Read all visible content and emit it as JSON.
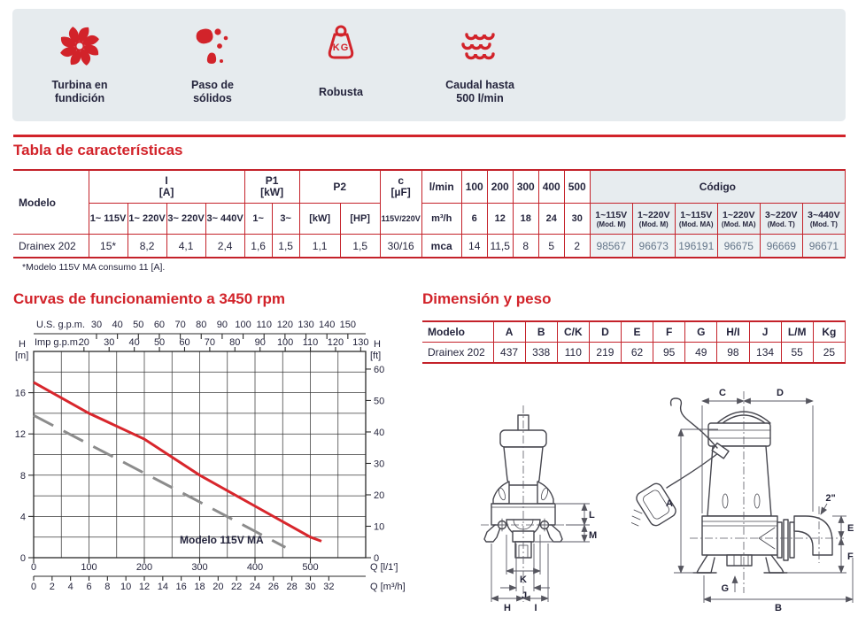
{
  "colors": {
    "accent_red": "#d2232a",
    "text_navy": "#25253d",
    "banner_bg": "#e6ebee",
    "code_header_bg": "#e7ecef",
    "code_value_bg": "#eef2f4",
    "code_text": "#64768a",
    "curve_red": "#d8262c",
    "curve_gray": "#8c8c8c"
  },
  "banner": {
    "features": [
      {
        "icon": "impeller-icon",
        "lines": [
          "Turbina en",
          "fundición"
        ]
      },
      {
        "icon": "solids-passage-icon",
        "lines": [
          "Paso de",
          "sólidos"
        ]
      },
      {
        "icon": "kg-weight-icon",
        "lines": [
          "Robusta"
        ],
        "kg_label": "KG"
      },
      {
        "icon": "waves-icon",
        "lines": [
          "Caudal hasta",
          "500 l/min"
        ]
      }
    ]
  },
  "char_table": {
    "title": "Tabla de características",
    "footnote": "*Modelo 115V MA consumo 11 [A].",
    "model_header": "Modelo",
    "group_I": {
      "label": "I",
      "unit": "[A]",
      "cols": [
        "1~ 115V",
        "1~ 220V",
        "3~ 220V",
        "3~ 440V"
      ]
    },
    "group_P1": {
      "label": "P1",
      "unit": "[kW]",
      "cols": [
        "1~",
        "3~"
      ]
    },
    "group_P2": {
      "label": "P2",
      "cols": [
        "[kW]",
        "[HP]"
      ]
    },
    "group_c": {
      "label": "c",
      "unit": "[µF]",
      "sub": "115V/220V"
    },
    "flow": {
      "l_min": "l/min",
      "m3_h": "m³/h",
      "mca": "mca",
      "l_min_values": [
        "100",
        "200",
        "300",
        "400",
        "500"
      ],
      "m3_h_values": [
        "6",
        "12",
        "18",
        "24",
        "30"
      ],
      "mca_values": [
        "14",
        "11,5",
        "8",
        "5",
        "2"
      ]
    },
    "codigo": {
      "label": "Código",
      "headers": [
        {
          "volt": "1~115V",
          "mod": "(Mod. M)"
        },
        {
          "volt": "1~220V",
          "mod": "(Mod. M)"
        },
        {
          "volt": "1~115V",
          "mod": "(Mod. MA)"
        },
        {
          "volt": "1~220V",
          "mod": "(Mod. MA)"
        },
        {
          "volt": "3~220V",
          "mod": "(Mod. T)"
        },
        {
          "volt": "3~440V",
          "mod": "(Mod. T)"
        }
      ],
      "values": [
        "98567",
        "96673",
        "196191",
        "96675",
        "96669",
        "96671"
      ]
    },
    "row": {
      "model": "Drainex 202",
      "I": [
        "15*",
        "8,2",
        "4,1",
        "2,4"
      ],
      "P1": [
        "1,6",
        "1,5"
      ],
      "P2": [
        "1,1",
        "1,5"
      ],
      "c": "30/16"
    }
  },
  "curves": {
    "title": "Curvas de funcionamiento a 3450 rpm",
    "chart_data": {
      "type": "line",
      "annotation": "Modelo 115V MA",
      "x_axes": {
        "us_gpm": {
          "label": "U.S. g.p.m.",
          "ticks": [
            30,
            40,
            50,
            60,
            70,
            80,
            90,
            100,
            110,
            120,
            130,
            140,
            150
          ],
          "lmin_per_unit": 3.785
        },
        "imp_gpm": {
          "label": "Imp g.p.m.",
          "ticks": [
            20,
            30,
            40,
            50,
            60,
            70,
            80,
            90,
            100,
            110,
            120,
            130
          ],
          "lmin_per_unit": 4.546
        },
        "lmin": {
          "label": "Q [l/1']",
          "ticks": [
            0,
            100,
            200,
            300,
            400,
            500
          ]
        },
        "m3h": {
          "label": "Q [m³/h]",
          "ticks": [
            0,
            2,
            4,
            6,
            8,
            10,
            12,
            14,
            16,
            18,
            20,
            22,
            24,
            26,
            28,
            30,
            32
          ],
          "lmin_per_unit": 16.667
        }
      },
      "y_axes": {
        "m": {
          "label_top": "H",
          "label_unit": "[m]",
          "ticks": [
            0,
            4,
            8,
            12,
            16
          ],
          "max": 20
        },
        "ft": {
          "label_top": "H",
          "label_unit": "[ft]",
          "ticks": [
            0,
            10,
            20,
            30,
            40,
            50,
            60
          ],
          "m_per_unit": 0.3048
        }
      },
      "grid": {
        "x_max_lmin": 600,
        "x_step_lmin": 50,
        "y_max_m": 20,
        "y_step_m": 2
      },
      "series": [
        {
          "name": "Drainex 202",
          "style": "solid",
          "points_lmin_m": [
            [
              0,
              17
            ],
            [
              100,
              14
            ],
            [
              200,
              11.5
            ],
            [
              300,
              8
            ],
            [
              400,
              5
            ],
            [
              500,
              2
            ],
            [
              520,
              1.6
            ]
          ]
        },
        {
          "name": "Modelo 115V MA",
          "style": "dashed",
          "points_lmin_m": [
            [
              0,
              13.8
            ],
            [
              150,
              9.6
            ],
            [
              300,
              5.4
            ],
            [
              455,
              1.0
            ]
          ]
        }
      ]
    }
  },
  "dim_table": {
    "title": "Dimensión y peso",
    "headers": [
      "Modelo",
      "A",
      "B",
      "C/K",
      "D",
      "E",
      "F",
      "G",
      "H/I",
      "J",
      "L/M",
      "Kg"
    ],
    "row": [
      "Drainex 202",
      "437",
      "338",
      "110",
      "219",
      "62",
      "95",
      "49",
      "98",
      "134",
      "55",
      "25"
    ]
  },
  "drawings": {
    "front": {
      "dims": [
        "L",
        "M",
        "K",
        "J",
        "H",
        "I"
      ]
    },
    "side": {
      "dims": [
        "C",
        "D",
        "A",
        "E",
        "F",
        "G",
        "B"
      ],
      "port_size": "2\""
    }
  }
}
